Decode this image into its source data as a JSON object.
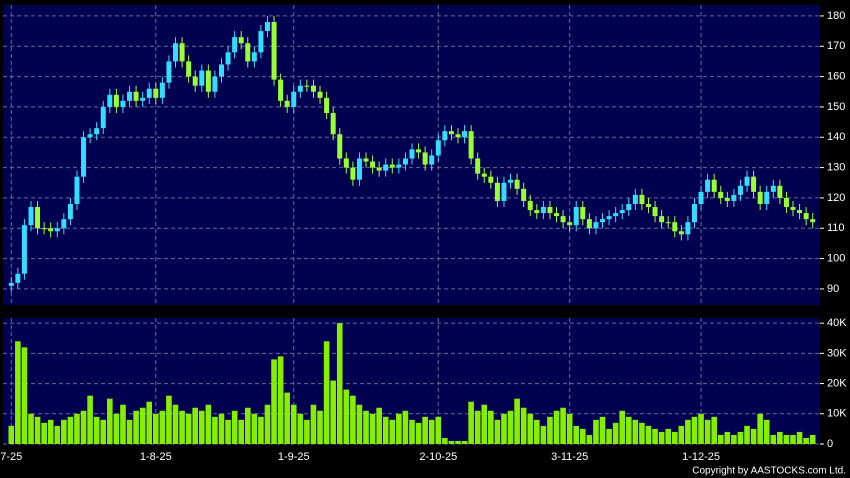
{
  "chart_data": [
    {
      "type": "candlestick",
      "categories": [
        "7-25",
        null,
        null,
        null,
        null,
        null,
        null,
        null,
        null,
        null,
        null,
        null,
        null,
        null,
        null,
        null,
        null,
        null,
        null,
        null,
        null,
        null,
        "1-8-25",
        null,
        null,
        null,
        null,
        null,
        null,
        null,
        null,
        null,
        null,
        null,
        null,
        null,
        null,
        null,
        null,
        null,
        null,
        null,
        null,
        "1-9-25",
        null,
        null,
        null,
        null,
        null,
        null,
        null,
        null,
        null,
        null,
        null,
        null,
        null,
        null,
        null,
        null,
        null,
        null,
        null,
        null,
        null,
        "2-10-25",
        null,
        null,
        null,
        null,
        null,
        null,
        null,
        null,
        null,
        null,
        null,
        null,
        null,
        null,
        null,
        null,
        null,
        null,
        null,
        "3-11-25",
        null,
        null,
        null,
        null,
        null,
        null,
        null,
        null,
        null,
        null,
        null,
        null,
        null,
        null,
        null,
        null,
        null,
        null,
        null,
        "1-12-25",
        null,
        null,
        null,
        null,
        null,
        null,
        null,
        null,
        null,
        null,
        null,
        null,
        null,
        null,
        null,
        null,
        null
      ],
      "open": [
        91,
        92,
        95,
        111,
        117,
        110,
        110,
        109,
        110,
        113,
        118,
        127,
        140,
        141,
        143,
        150,
        154,
        150,
        152,
        155,
        152,
        153,
        156,
        153,
        158,
        165,
        171,
        165,
        160,
        157,
        162,
        155,
        160,
        164,
        168,
        173,
        171,
        165,
        168,
        175,
        178,
        159,
        152,
        150,
        155,
        157,
        157,
        155,
        153,
        148,
        141,
        133,
        130,
        126,
        133,
        132,
        130,
        129,
        131,
        130,
        131,
        133,
        136,
        135,
        131,
        134,
        139,
        142,
        141,
        140,
        142,
        133,
        128,
        127,
        125,
        119,
        125,
        126,
        123,
        119,
        116,
        115,
        117,
        115,
        114,
        112,
        111,
        117,
        113,
        110,
        112,
        113,
        114,
        115,
        116,
        118,
        121,
        118,
        117,
        114,
        112,
        112,
        109,
        108,
        112,
        118,
        122,
        126,
        122,
        120,
        119,
        121,
        124,
        127,
        122,
        118,
        122,
        124,
        120,
        117,
        116,
        115,
        113
      ],
      "high": [
        94,
        97,
        113,
        119,
        119,
        112,
        112,
        112,
        115,
        120,
        129,
        142,
        143,
        145,
        152,
        156,
        156,
        154,
        157,
        157,
        155,
        158,
        158,
        160,
        167,
        173,
        173,
        167,
        162,
        164,
        164,
        162,
        166,
        170,
        175,
        175,
        173,
        170,
        177,
        180,
        180,
        161,
        154,
        157,
        159,
        159,
        159,
        157,
        155,
        150,
        143,
        135,
        132,
        135,
        135,
        134,
        132,
        133,
        133,
        133,
        135,
        138,
        138,
        137,
        136,
        141,
        144,
        144,
        143,
        144,
        144,
        135,
        130,
        129,
        127,
        127,
        128,
        128,
        125,
        121,
        118,
        119,
        119,
        117,
        116,
        114,
        119,
        119,
        115,
        114,
        115,
        116,
        117,
        118,
        120,
        123,
        123,
        120,
        119,
        116,
        114,
        114,
        111,
        114,
        120,
        124,
        128,
        128,
        124,
        122,
        123,
        126,
        129,
        129,
        124,
        124,
        126,
        126,
        122,
        119,
        118,
        117,
        115
      ],
      "low": [
        89,
        90,
        93,
        109,
        108,
        108,
        107,
        107,
        108,
        111,
        116,
        125,
        138,
        139,
        141,
        148,
        148,
        148,
        150,
        150,
        150,
        151,
        151,
        151,
        156,
        163,
        163,
        158,
        155,
        155,
        153,
        153,
        158,
        162,
        166,
        169,
        163,
        163,
        166,
        173,
        157,
        150,
        148,
        148,
        153,
        155,
        153,
        151,
        146,
        139,
        131,
        128,
        124,
        124,
        130,
        128,
        127,
        127,
        128,
        128,
        129,
        131,
        133,
        129,
        129,
        132,
        137,
        139,
        138,
        138,
        131,
        126,
        125,
        123,
        117,
        117,
        123,
        121,
        117,
        114,
        113,
        113,
        113,
        112,
        110,
        109,
        109,
        111,
        108,
        108,
        110,
        111,
        112,
        113,
        114,
        116,
        116,
        115,
        112,
        110,
        110,
        107,
        106,
        106,
        110,
        116,
        120,
        120,
        118,
        117,
        117,
        119,
        122,
        120,
        116,
        116,
        120,
        118,
        115,
        114,
        113,
        111,
        110
      ],
      "close": [
        92,
        95,
        111,
        117,
        110,
        110,
        109,
        110,
        113,
        118,
        127,
        140,
        141,
        143,
        150,
        154,
        150,
        152,
        155,
        152,
        153,
        156,
        153,
        158,
        165,
        171,
        165,
        160,
        157,
        162,
        155,
        160,
        164,
        168,
        173,
        171,
        165,
        168,
        175,
        178,
        159,
        152,
        150,
        155,
        157,
        157,
        155,
        153,
        148,
        141,
        133,
        130,
        126,
        133,
        132,
        130,
        129,
        131,
        130,
        131,
        133,
        136,
        135,
        131,
        134,
        139,
        142,
        141,
        140,
        142,
        133,
        128,
        127,
        125,
        119,
        125,
        126,
        123,
        119,
        116,
        115,
        117,
        115,
        114,
        112,
        111,
        117,
        113,
        110,
        112,
        113,
        114,
        115,
        116,
        118,
        121,
        118,
        117,
        114,
        112,
        112,
        109,
        108,
        112,
        118,
        122,
        126,
        122,
        120,
        119,
        121,
        124,
        127,
        122,
        118,
        122,
        124,
        120,
        117,
        116,
        115,
        113,
        112
      ],
      "up_color": "#33ddff",
      "down_color": "#99ff33",
      "ylim": [
        84.7,
        183.6
      ],
      "yticks": [
        90,
        100,
        110,
        120,
        130,
        140,
        150,
        160,
        170,
        180
      ],
      "grid": true
    },
    {
      "type": "bar",
      "color": "#88ee00",
      "values": [
        6000,
        34000,
        32000,
        10000,
        9000,
        7000,
        8000,
        6000,
        8000,
        9000,
        10000,
        11000,
        16000,
        9000,
        8000,
        15000,
        10000,
        13000,
        8000,
        11000,
        12000,
        14000,
        10000,
        11000,
        16000,
        13000,
        11000,
        10000,
        12000,
        11000,
        13000,
        9000,
        10000,
        8000,
        11000,
        8000,
        12000,
        10000,
        9000,
        13000,
        28000,
        29000,
        17000,
        13000,
        10000,
        8000,
        13000,
        11000,
        34000,
        21000,
        40000,
        18000,
        16000,
        13000,
        11000,
        10000,
        12000,
        9000,
        8000,
        10000,
        11000,
        8000,
        7000,
        9000,
        8000,
        9000,
        2000,
        1000,
        1000,
        1000,
        14000,
        11000,
        13000,
        11000,
        8000,
        10000,
        11000,
        15000,
        12000,
        10000,
        8000,
        6000,
        9000,
        11000,
        12000,
        10000,
        6000,
        5000,
        3000,
        8000,
        9000,
        5000,
        7000,
        11000,
        9000,
        8000,
        7000,
        6000,
        5000,
        4000,
        5000,
        4000,
        6000,
        8000,
        9000,
        10000,
        8000,
        9000,
        3000,
        4000,
        3000,
        4000,
        6000,
        5000,
        10000,
        8000,
        3000,
        4000,
        3000,
        3000,
        4000,
        2000,
        3000
      ],
      "ylim": [
        0,
        41700
      ],
      "yticks": [
        0,
        {
          "value": 10000,
          "label": "10K"
        },
        {
          "value": 20000,
          "label": "20K"
        },
        {
          "value": 30000,
          "label": "30K"
        },
        {
          "value": 40000,
          "label": "40K"
        }
      ],
      "grid": true
    }
  ],
  "copyright": "Copyright by AASTOCKS.com Ltd."
}
